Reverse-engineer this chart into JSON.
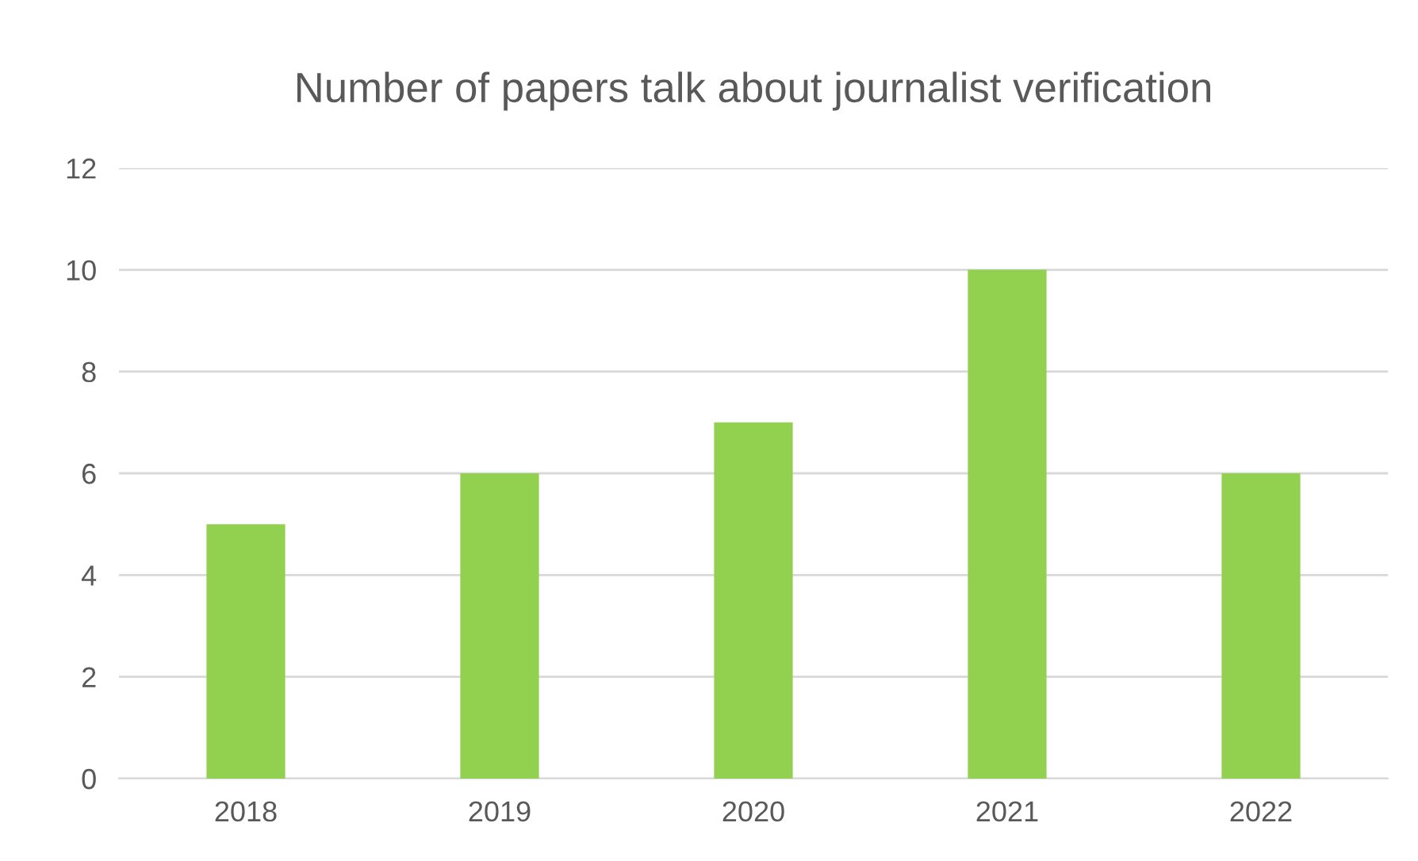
{
  "chart_data": {
    "type": "bar",
    "title": "Number of papers talk about journalist verification",
    "categories": [
      "2018",
      "2019",
      "2020",
      "2021",
      "2022"
    ],
    "values": [
      5,
      6,
      7,
      10,
      6
    ],
    "color": "#92d050",
    "ylim": [
      0,
      12
    ],
    "yticks": [
      0,
      2,
      4,
      6,
      8,
      10,
      12
    ],
    "grid": "y"
  }
}
